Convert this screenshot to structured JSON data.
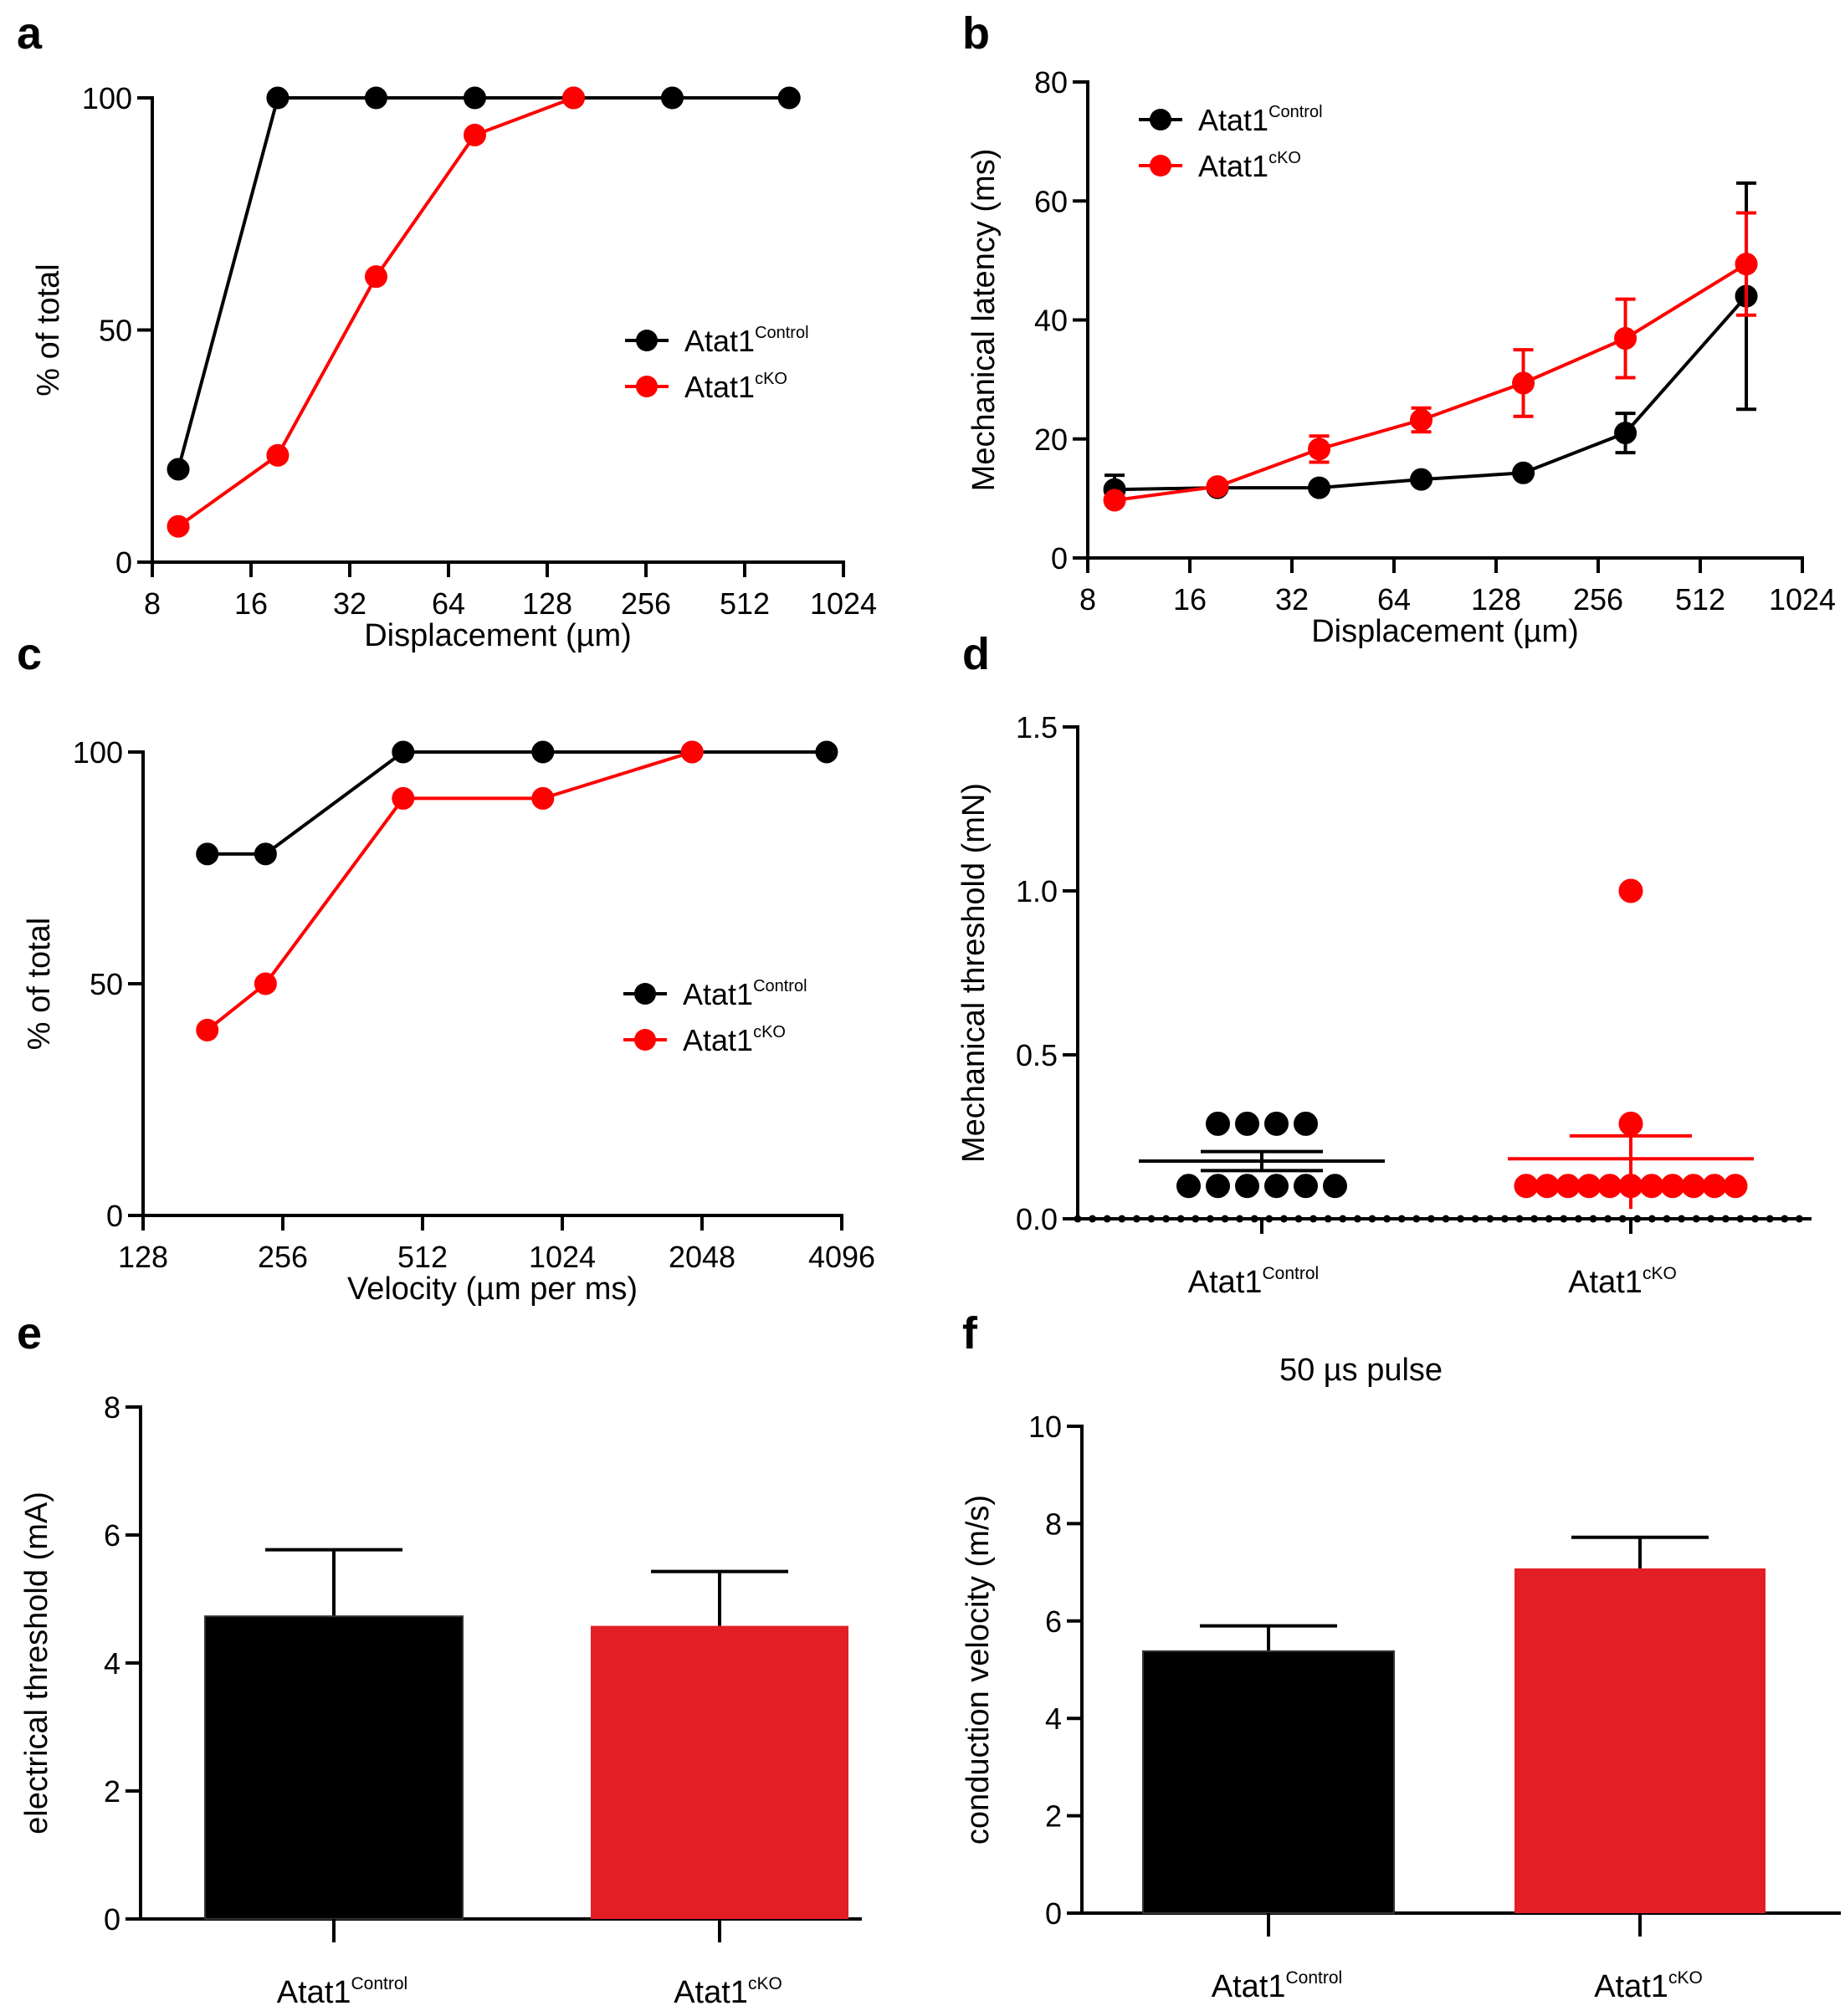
{
  "figure": {
    "colors": {
      "control": "#000000",
      "cko": "#ff0000",
      "cko_bar": "#e31e25",
      "axis": "#000000"
    },
    "legend_entries": [
      {
        "base": "Atat1",
        "sup": "Control",
        "series": "control"
      },
      {
        "base": "Atat1",
        "sup": "cKO",
        "series": "cko"
      }
    ]
  },
  "chart_data": [
    {
      "panel": "a",
      "type": "line",
      "title": "",
      "xlabel": "Displacement (µm)",
      "ylabel": "% of total",
      "xscale": "log2",
      "xlim": [
        8,
        1024
      ],
      "ylim": [
        0,
        100
      ],
      "xticks": [
        "8",
        "16",
        "32",
        "64",
        "128",
        "256",
        "512",
        "1024"
      ],
      "yticks": [
        "0",
        "50",
        "100"
      ],
      "legend": "bottom-right",
      "series": [
        {
          "name": "Atat1 Control",
          "color": "control",
          "x": [
            9.6,
            19.3,
            38.5,
            77,
            154,
            308,
            700
          ],
          "y": [
            20,
            100,
            100,
            100,
            100,
            100,
            100
          ]
        },
        {
          "name": "Atat1 cKO",
          "color": "cko",
          "x": [
            9.6,
            19.3,
            38.5,
            77,
            154
          ],
          "y": [
            7.7,
            23,
            61.5,
            92,
            100
          ]
        }
      ]
    },
    {
      "panel": "b",
      "type": "line",
      "title": "",
      "xlabel": "Displacement (µm)",
      "ylabel": "Mechanical latency (ms)",
      "xscale": "log2",
      "xlim": [
        8,
        1024
      ],
      "ylim": [
        0,
        80
      ],
      "xticks": [
        "8",
        "16",
        "32",
        "64",
        "128",
        "256",
        "512",
        "1024"
      ],
      "yticks": [
        "0",
        "20",
        "40",
        "60",
        "80"
      ],
      "legend": "top-left",
      "series": [
        {
          "name": "Atat1 Control",
          "color": "control",
          "x": [
            9.6,
            19.3,
            38.5,
            77,
            154,
            308,
            700
          ],
          "y": [
            11.5,
            11.8,
            11.8,
            13.2,
            14.3,
            21.0,
            44.0
          ],
          "err": [
            2.4,
            0,
            0,
            0,
            0,
            3.3,
            19.0
          ]
        },
        {
          "name": "Atat1 cKO",
          "color": "cko",
          "x": [
            9.6,
            19.3,
            38.5,
            77,
            154,
            308,
            700
          ],
          "y": [
            9.7,
            12.0,
            18.3,
            23.2,
            29.4,
            36.9,
            49.4
          ],
          "err": [
            0,
            0,
            2.2,
            2.0,
            5.6,
            6.6,
            8.6
          ]
        }
      ]
    },
    {
      "panel": "c",
      "type": "line",
      "title": "",
      "xlabel": "Velocity (µm per ms)",
      "ylabel": "% of total",
      "xscale": "log2",
      "xlim": [
        128,
        4096
      ],
      "ylim": [
        0,
        100
      ],
      "xticks": [
        "128",
        "256",
        "512",
        "1024",
        "2048",
        "4096"
      ],
      "yticks": [
        "0",
        "50",
        "100"
      ],
      "legend": "bottom-right",
      "series": [
        {
          "name": "Atat1 Control",
          "color": "control",
          "x": [
            176,
            235,
            465,
            930,
            1950,
            3800
          ],
          "y": [
            78,
            78,
            100,
            100,
            100,
            100
          ]
        },
        {
          "name": "Atat1 cKO",
          "color": "cko",
          "x": [
            176,
            235,
            465,
            930,
            1950
          ],
          "y": [
            40,
            50,
            90,
            90,
            100
          ]
        }
      ]
    },
    {
      "panel": "d",
      "type": "scatter",
      "title": "",
      "xlabel": "",
      "ylabel": "Mechanical threshold (mN)",
      "ylim": [
        0,
        1.5
      ],
      "yticks": [
        "0.0",
        "0.5",
        "1.0",
        "1.5"
      ],
      "categories": [
        "Atat1 Control",
        "Atat1 cKO"
      ],
      "groups": [
        {
          "name": "Atat1 Control",
          "color": "control",
          "values": [
            0.29,
            0.29,
            0.29,
            0.29,
            0.1,
            0.1,
            0.1,
            0.1,
            0.1,
            0.1
          ],
          "mean": 0.176,
          "sem": 0.029
        },
        {
          "name": "Atat1 cKO",
          "color": "cko",
          "values": [
            1.0,
            0.29,
            0.1,
            0.1,
            0.1,
            0.1,
            0.1,
            0.1,
            0.1,
            0.1,
            0.1,
            0.1,
            0.1
          ],
          "mean": 0.183,
          "sem": 0.07
        }
      ]
    },
    {
      "panel": "e",
      "type": "bar",
      "title": "",
      "xlabel": "",
      "ylabel": "electrical threshold (mA)",
      "ylim": [
        0,
        8
      ],
      "yticks": [
        "0",
        "2",
        "4",
        "6",
        "8"
      ],
      "categories": [
        "Atat1 Control",
        "Atat1 cKO"
      ],
      "values": [
        4.73,
        4.58
      ],
      "errors": [
        1.04,
        0.85
      ],
      "colors": [
        "control",
        "cko_bar"
      ]
    },
    {
      "panel": "f",
      "type": "bar",
      "title": "50 µs pulse",
      "xlabel": "",
      "ylabel": "conduction velocity (m/s)",
      "ylim": [
        0,
        10
      ],
      "yticks": [
        "0",
        "2",
        "4",
        "6",
        "8",
        "10"
      ],
      "categories": [
        "Atat1 Control",
        "Atat1 cKO"
      ],
      "values": [
        5.38,
        7.08
      ],
      "errors": [
        0.52,
        0.64
      ],
      "colors": [
        "control",
        "cko_bar"
      ]
    }
  ]
}
